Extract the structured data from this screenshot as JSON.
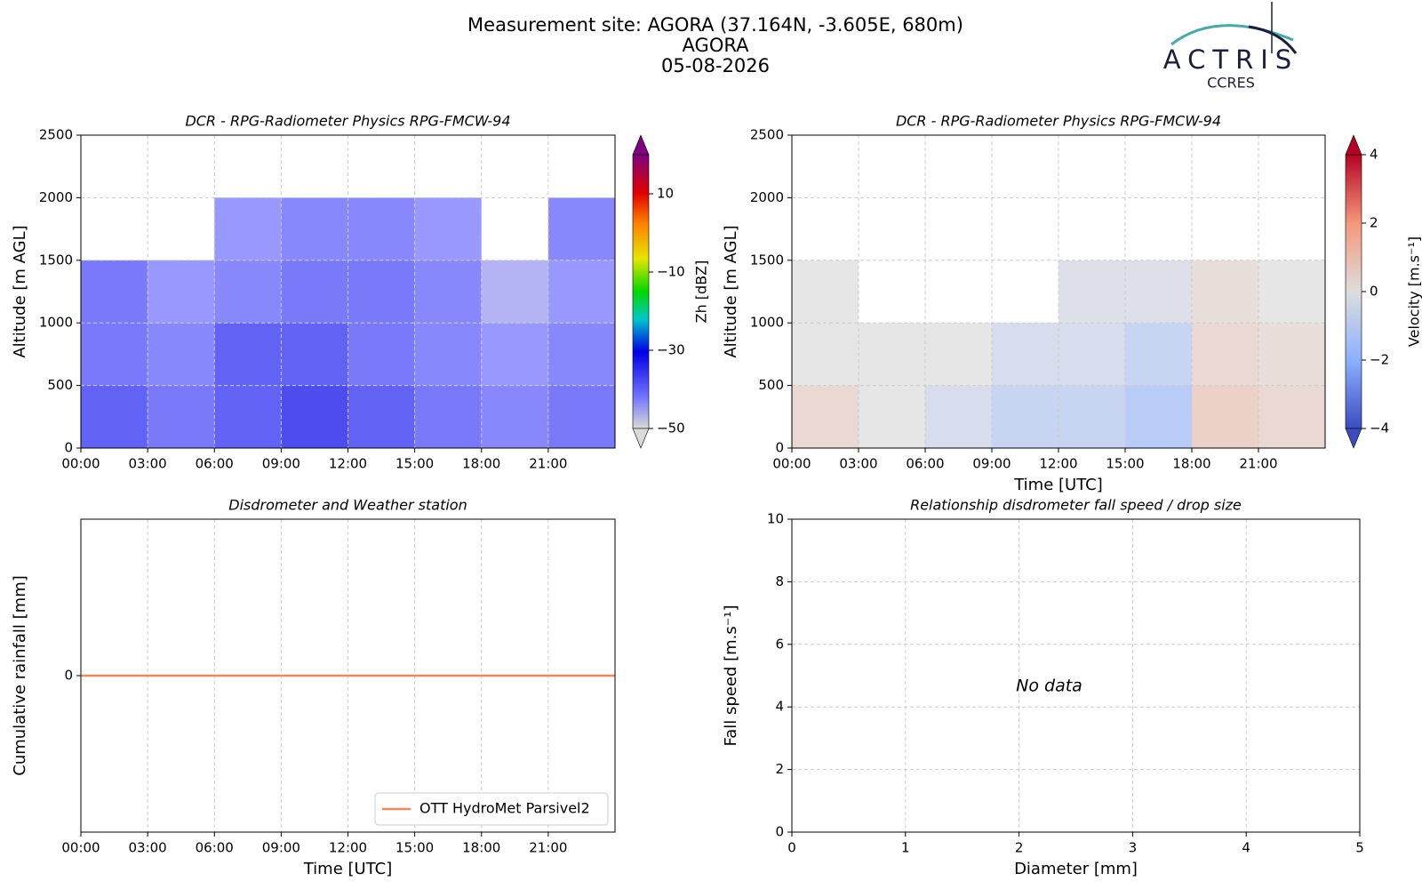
{
  "header": {
    "title": "Measurement site: AGORA (37.164N, -3.605E, 680m)",
    "site": "AGORA",
    "date": "05-08-2026",
    "logo_text": "ACTRIS",
    "logo_subtext": "CCRES"
  },
  "chart_data": [
    {
      "type": "heatmap",
      "title": "DCR - RPG-Radiometer Physics RPG-FMCW-94",
      "y_label": "Altitude [m AGL]",
      "x": [
        1.5,
        4.5,
        7.5,
        10.5,
        13.5,
        16.5,
        19.5,
        22.5
      ],
      "y": [
        250,
        750,
        1250,
        1750,
        2250
      ],
      "values": [
        [
          -35,
          -38,
          -35,
          -32,
          -35,
          -38,
          -40,
          -38
        ],
        [
          -38,
          -40,
          -35,
          -35,
          -38,
          -40,
          -42,
          -40
        ],
        [
          -38,
          -42,
          -40,
          -38,
          -38,
          -40,
          -45,
          -42
        ],
        [
          null,
          null,
          -42,
          -40,
          -40,
          -42,
          null,
          -40
        ],
        [
          null,
          null,
          null,
          null,
          null,
          null,
          null,
          null
        ]
      ],
      "xlim": [
        0,
        24
      ],
      "xticks": [
        {
          "value": 0,
          "label": "00:00"
        },
        {
          "value": 3,
          "label": "03:00"
        },
        {
          "value": 6,
          "label": "06:00"
        },
        {
          "value": 9,
          "label": "09:00"
        },
        {
          "value": 12,
          "label": "12:00"
        },
        {
          "value": 15,
          "label": "15:00"
        },
        {
          "value": 18,
          "label": "18:00"
        },
        {
          "value": 21,
          "label": "21:00"
        }
      ],
      "ylim": [
        0,
        2500
      ],
      "yticks": [
        0,
        500,
        1000,
        1500,
        2000,
        2500
      ],
      "grid": true,
      "colormap": "reflectivity",
      "clim": [
        -50,
        20
      ],
      "cticks": [
        10,
        {
          "value": -10,
          "label": "−10"
        },
        {
          "value": -30,
          "label": "−30"
        },
        {
          "value": -50,
          "label": "−50"
        }
      ],
      "colorbar_label": "Zh [dBZ]"
    },
    {
      "type": "heatmap",
      "title": "DCR - RPG-Radiometer Physics RPG-FMCW-94",
      "y_label": "Altitude [m AGL]",
      "x_label": "Time [UTC]",
      "x": [
        1.5,
        4.5,
        7.5,
        10.5,
        13.5,
        16.5,
        19.5,
        22.5
      ],
      "y": [
        250,
        750,
        1250,
        1750,
        2250
      ],
      "values": [
        [
          0.5,
          0,
          -0.5,
          -1,
          -1,
          -1.5,
          0.8,
          0.5
        ],
        [
          0,
          0,
          0,
          -0.5,
          -0.5,
          -1,
          0.5,
          0.3
        ],
        [
          0,
          null,
          null,
          null,
          -0.3,
          -0.3,
          0.3,
          0
        ],
        [
          null,
          null,
          null,
          null,
          null,
          null,
          null,
          null
        ],
        [
          null,
          null,
          null,
          null,
          null,
          null,
          null,
          null
        ]
      ],
      "xlim": [
        0,
        24
      ],
      "xticks": [
        {
          "value": 0,
          "label": "00:00"
        },
        {
          "value": 3,
          "label": "03:00"
        },
        {
          "value": 6,
          "label": "06:00"
        },
        {
          "value": 9,
          "label": "09:00"
        },
        {
          "value": 12,
          "label": "12:00"
        },
        {
          "value": 15,
          "label": "15:00"
        },
        {
          "value": 18,
          "label": "18:00"
        },
        {
          "value": 21,
          "label": "21:00"
        }
      ],
      "ylim": [
        0,
        2500
      ],
      "yticks": [
        0,
        500,
        1000,
        1500,
        2000,
        2500
      ],
      "grid": true,
      "colormap": "velocity",
      "clim": [
        -4,
        4
      ],
      "cticks": [
        4,
        2,
        0,
        {
          "value": -2,
          "label": "−2"
        },
        {
          "value": -4,
          "label": "−4"
        }
      ],
      "colorbar_label": "Velocity [m.s⁻¹]"
    },
    {
      "type": "line",
      "title": "Disdrometer and Weather station",
      "y_label": "Cumulative rainfall [mm]",
      "x_label": "Time [UTC]",
      "x": [
        0,
        24
      ],
      "series": [
        {
          "name": "OTT HydroMet Parsivel2",
          "color": "#ee8a5e",
          "values": [
            0,
            0
          ]
        }
      ],
      "xlim": [
        0,
        24
      ],
      "xticks": [
        {
          "value": 0,
          "label": "00:00"
        },
        {
          "value": 3,
          "label": "03:00"
        },
        {
          "value": 6,
          "label": "06:00"
        },
        {
          "value": 9,
          "label": "09:00"
        },
        {
          "value": 12,
          "label": "12:00"
        },
        {
          "value": 15,
          "label": "15:00"
        },
        {
          "value": 18,
          "label": "18:00"
        },
        {
          "value": 21,
          "label": "21:00"
        }
      ],
      "ylim": [
        -0.055,
        0.055
      ],
      "yticks": [
        0
      ],
      "grid": true,
      "legend": "lower right"
    },
    {
      "type": "scatter",
      "title": "Relationship disdrometer fall speed / drop size",
      "y_label": "Fall speed [m.s⁻¹]",
      "x_label": "Diameter [mm]",
      "annotation": "No data",
      "xlim": [
        0,
        5
      ],
      "xticks": [
        0,
        1,
        2,
        3,
        4,
        5
      ],
      "ylim": [
        0,
        10
      ],
      "yticks": [
        0,
        2,
        4,
        6,
        8,
        10
      ],
      "grid": true
    }
  ]
}
